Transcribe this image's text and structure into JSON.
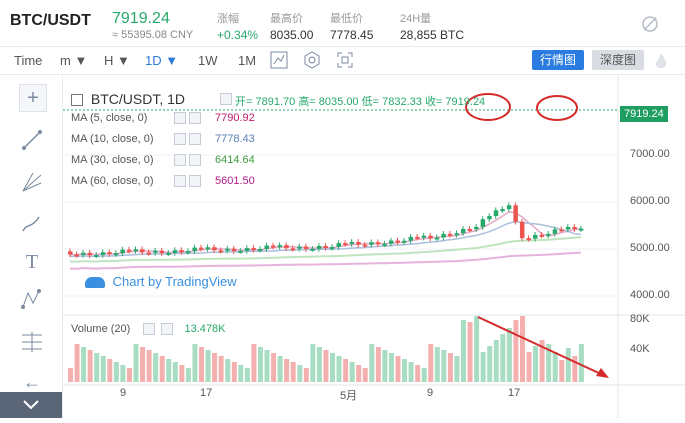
{
  "header": {
    "pair": "BTC/USDT",
    "price": "7919.24",
    "cny": "≈ 55395.08 CNY",
    "change_label": "涨幅",
    "change_value": "+0.34%",
    "high_label": "最高价",
    "high_value": "8035.00",
    "low_label": "最低价",
    "low_value": "7778.45",
    "vol_label": "24H量",
    "vol_value": "28,855 BTC"
  },
  "toolbar": {
    "time": "Time",
    "m": "m ▼",
    "h": "H ▼",
    "d": "1D ▼",
    "w": "1W",
    "mo": "1M",
    "btn_chart": "行情图",
    "btn_depth": "深度图"
  },
  "legend": {
    "symbol": "BTC/USDT, 1D",
    "open": "开= 7891.70",
    "high": "高= 8035.00",
    "low": "低= 7832.33",
    "close": "收= 7919.24",
    "ma": [
      {
        "label": "MA (5, close, 0)",
        "value": "7790.92",
        "color": "#c2196b"
      },
      {
        "label": "MA (10, close, 0)",
        "value": "7778.43",
        "color": "#5a7fb8"
      },
      {
        "label": "MA (30, close, 0)",
        "value": "6414.64",
        "color": "#3e9d3e"
      },
      {
        "label": "MA (60, close, 0)",
        "value": "5601.50",
        "color": "#b21a8a"
      }
    ]
  },
  "watermark": "Chart by TradingView",
  "last_price_tag": "7919.24",
  "y_axis": [
    "7000.00",
    "6000.00",
    "5000.00",
    "4000.00"
  ],
  "volume": {
    "label": "Volume (20)",
    "value": "13.478K",
    "ticks": [
      "80K",
      "40K"
    ]
  },
  "x_axis": [
    "9",
    "17",
    "5月",
    "9",
    "17"
  ],
  "colors": {
    "up": "#27a96b",
    "down": "#ef5350",
    "accent": "#2a7ce0"
  }
}
